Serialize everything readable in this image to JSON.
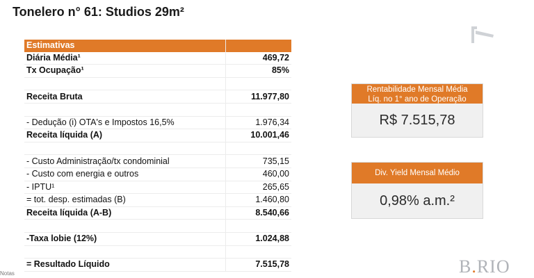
{
  "title": "Tonelero n° 61: Studios 29m²",
  "table": {
    "header": "Estimativas",
    "rows": [
      {
        "label": "Diária Média¹",
        "value": "469,72",
        "bold": true
      },
      {
        "label": "Tx Ocupação¹",
        "value": "85%",
        "bold": true
      },
      {
        "label": "",
        "value": "",
        "bold": false
      },
      {
        "label": "Receita Bruta",
        "value": "11.977,80",
        "bold": true
      },
      {
        "label": "",
        "value": "",
        "bold": false
      },
      {
        "label": "- Dedução (i) OTA's e Impostos 16,5%",
        "value": "1.976,34",
        "bold": false
      },
      {
        "label": "Receita líquida (A)",
        "value": "10.001,46",
        "bold": true
      },
      {
        "label": "",
        "value": "",
        "bold": false
      },
      {
        "label": "- Custo Administração/tx condominial",
        "value": "735,15",
        "bold": false
      },
      {
        "label": "- Custo com energia e outros",
        "value": "460,00",
        "bold": false
      },
      {
        "label": "- IPTU¹",
        "value": "265,65",
        "bold": false
      },
      {
        "label": "= tot. desp. estimadas (B)",
        "value": "1.460,80",
        "bold": false
      },
      {
        "label": "Receita líquida (A-B)",
        "value": "8.540,66",
        "bold": true
      },
      {
        "label": "",
        "value": "",
        "bold": false
      },
      {
        "label": "-Taxa lobie (12%)",
        "value": "1.024,88",
        "bold": true
      },
      {
        "label": "",
        "value": "",
        "bold": false
      },
      {
        "label": "= Resultado Líquido",
        "value": "7.515,78",
        "bold": true
      }
    ]
  },
  "card1": {
    "header_line1": "Rentabilidade Mensal  Média",
    "header_line2": "Líq. no 1° ano de Operação",
    "value": "R$ 7.515,78"
  },
  "card2": {
    "header": "Div. Yield Mensal Médio",
    "value": "0,98% a.m.²"
  },
  "footer": {
    "notes": "Notas",
    "brand_a": "B",
    "brand_b": "RIO"
  },
  "colors": {
    "accent": "#e07a28"
  }
}
